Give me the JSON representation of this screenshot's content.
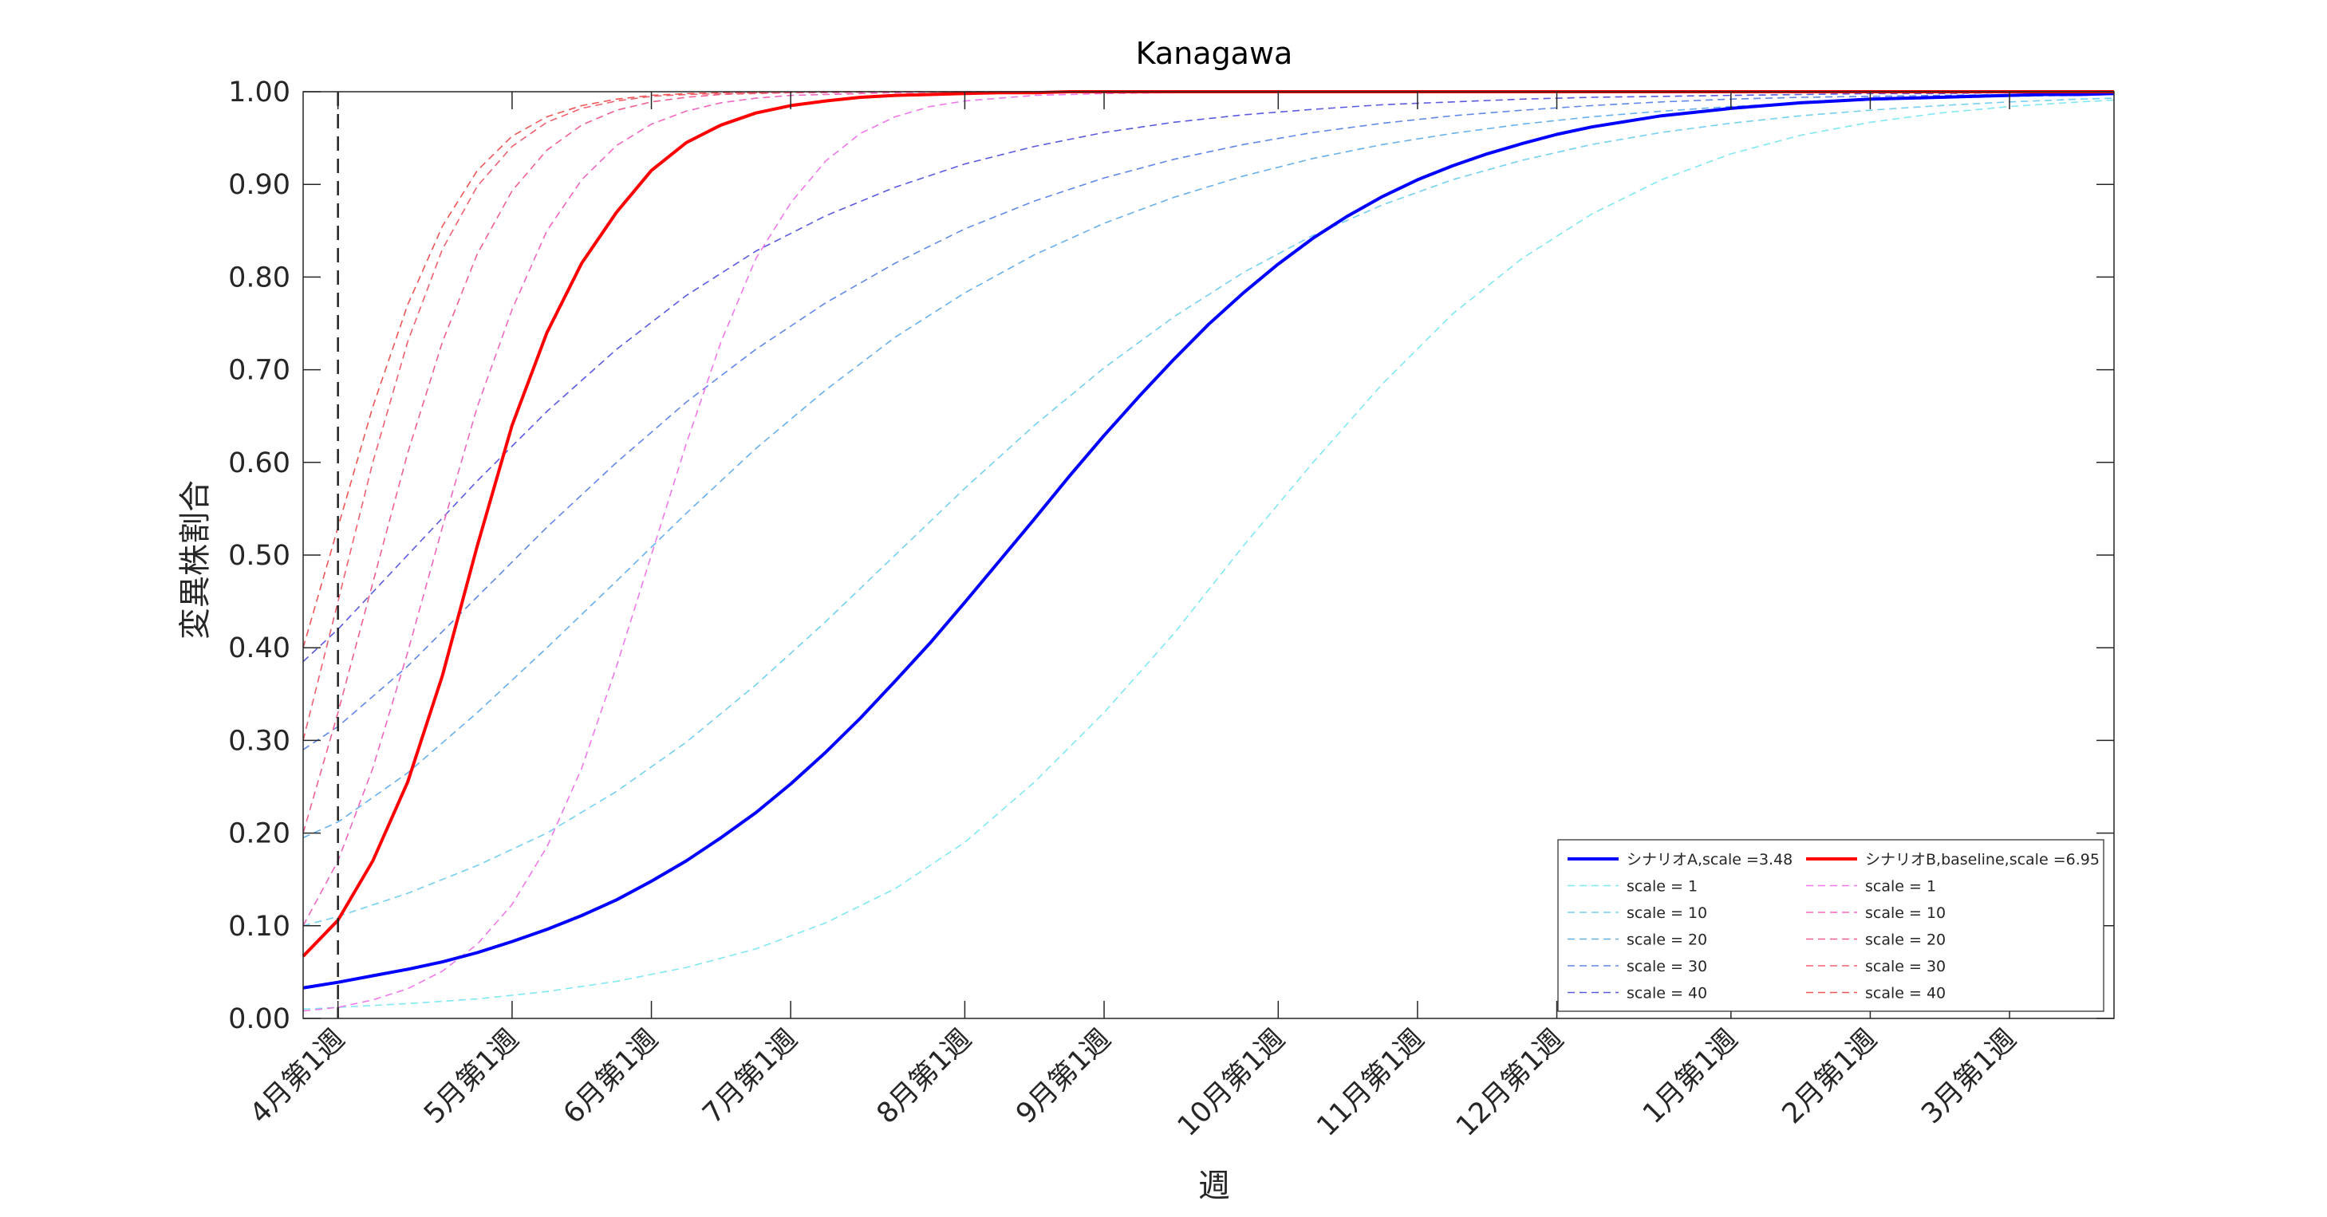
{
  "chart_data": {
    "type": "line",
    "title": "Kanagawa",
    "xlabel": "週",
    "ylabel": "変異株割合",
    "ylim": [
      0,
      1
    ],
    "yticks": [
      "0.00",
      "0.10",
      "0.20",
      "0.30",
      "0.40",
      "0.50",
      "0.60",
      "0.70",
      "0.80",
      "0.90",
      "1.00"
    ],
    "x_range_weeks": [
      -1,
      51
    ],
    "xticks": [
      {
        "week": 0,
        "label": "4月第1週"
      },
      {
        "week": 5,
        "label": "5月第1週"
      },
      {
        "week": 9,
        "label": "6月第1週"
      },
      {
        "week": 13,
        "label": "7月第1週"
      },
      {
        "week": 18,
        "label": "8月第1週"
      },
      {
        "week": 22,
        "label": "9月第1週"
      },
      {
        "week": 27,
        "label": "10月第1週"
      },
      {
        "week": 31,
        "label": "11月第1週"
      },
      {
        "week": 35,
        "label": "12月第1週"
      },
      {
        "week": 40,
        "label": "1月第1週"
      },
      {
        "week": 44,
        "label": "2月第1週"
      },
      {
        "week": 48,
        "label": "3月第1週"
      }
    ],
    "vline_week": 0,
    "grid": false,
    "legend_position": "bottom-right",
    "series": [
      {
        "name": "シナリオA,scale =3.48",
        "color": "#0000ff",
        "style": "solid",
        "width": 4,
        "x": [
          -1,
          0,
          1,
          2,
          3,
          4,
          5,
          6,
          7,
          8,
          9,
          10,
          11,
          12,
          13,
          14,
          15,
          16,
          17,
          18,
          19,
          20,
          21,
          22,
          23,
          24,
          25,
          26,
          27,
          28,
          29,
          30,
          31,
          32,
          33,
          34,
          35,
          36,
          37,
          38,
          39,
          40,
          41,
          42,
          43,
          44,
          45,
          46,
          47,
          48,
          49,
          50,
          51
        ],
        "y": [
          0.033,
          0.039,
          0.046,
          0.053,
          0.061,
          0.071,
          0.083,
          0.096,
          0.111,
          0.128,
          0.148,
          0.17,
          0.195,
          0.222,
          0.253,
          0.287,
          0.324,
          0.364,
          0.405,
          0.449,
          0.494,
          0.539,
          0.585,
          0.629,
          0.671,
          0.711,
          0.749,
          0.783,
          0.814,
          0.842,
          0.866,
          0.887,
          0.905,
          0.92,
          0.933,
          0.944,
          0.954,
          0.962,
          0.968,
          0.974,
          0.978,
          0.982,
          0.985,
          0.988,
          0.99,
          0.992,
          0.993,
          0.994,
          0.995,
          0.996,
          0.997,
          0.997,
          0.998
        ]
      },
      {
        "name": "シナリオB,baseline,scale =6.95",
        "color": "#ff0000",
        "style": "solid",
        "width": 4,
        "x": [
          -1,
          0,
          1,
          2,
          3,
          4,
          5,
          6,
          7,
          8,
          9,
          10,
          11,
          12,
          13,
          14,
          15,
          16,
          17,
          18,
          19,
          20,
          21,
          22,
          23,
          24,
          25,
          26,
          27,
          28,
          29,
          30,
          31,
          32,
          33,
          34,
          35,
          36,
          37,
          38,
          39,
          40,
          41,
          42,
          43,
          44,
          45,
          46,
          47,
          48,
          49,
          50,
          51
        ],
        "y": [
          0.067,
          0.106,
          0.17,
          0.255,
          0.37,
          0.51,
          0.64,
          0.74,
          0.815,
          0.87,
          0.915,
          0.945,
          0.964,
          0.977,
          0.985,
          0.99,
          0.994,
          0.996,
          0.997,
          0.998,
          0.999,
          0.999,
          1.0,
          1.0,
          1.0,
          1.0,
          1.0,
          1.0,
          1.0,
          1.0,
          1.0,
          1.0,
          1.0,
          1.0,
          1.0,
          1.0,
          1.0,
          1.0,
          1.0,
          1.0,
          1.0,
          1.0,
          1.0,
          1.0,
          1.0,
          1.0,
          1.0,
          1.0,
          1.0,
          1.0,
          1.0,
          1.0,
          1.0
        ]
      },
      {
        "name": "scale = 1",
        "group": "A",
        "color": "#7fe8f2",
        "style": "dashed",
        "width": 1.6,
        "x": [
          -1,
          0,
          2,
          4,
          6,
          8,
          10,
          12,
          14,
          16,
          18,
          20,
          22,
          24,
          26,
          28,
          30,
          32,
          34,
          36,
          38,
          40,
          42,
          44,
          46,
          48,
          50,
          51
        ],
        "y": [
          0.01,
          0.012,
          0.016,
          0.021,
          0.029,
          0.04,
          0.055,
          0.075,
          0.103,
          0.14,
          0.19,
          0.255,
          0.33,
          0.415,
          0.51,
          0.6,
          0.685,
          0.76,
          0.82,
          0.868,
          0.905,
          0.933,
          0.953,
          0.967,
          0.977,
          0.984,
          0.989,
          0.991
        ]
      },
      {
        "name": "scale = 10",
        "group": "A",
        "color": "#73d0f0",
        "style": "dashed",
        "width": 1.6,
        "x": [
          -1,
          0,
          2,
          4,
          6,
          8,
          10,
          12,
          14,
          16,
          18,
          20,
          22,
          24,
          26,
          28,
          30,
          32,
          34,
          36,
          38,
          40,
          42,
          44,
          46,
          48,
          50,
          51
        ],
        "y": [
          0.1,
          0.11,
          0.135,
          0.165,
          0.2,
          0.245,
          0.298,
          0.36,
          0.428,
          0.5,
          0.572,
          0.64,
          0.702,
          0.757,
          0.805,
          0.845,
          0.878,
          0.905,
          0.926,
          0.943,
          0.956,
          0.966,
          0.974,
          0.98,
          0.985,
          0.989,
          0.992,
          0.993
        ]
      },
      {
        "name": "scale = 20",
        "group": "A",
        "color": "#66b0ee",
        "style": "dashed",
        "width": 1.6,
        "x": [
          -1,
          0,
          2,
          4,
          6,
          8,
          10,
          12,
          14,
          16,
          18,
          20,
          22,
          24,
          26,
          28,
          30,
          32,
          34,
          36,
          38,
          40,
          42,
          44,
          46,
          48,
          50,
          51
        ],
        "y": [
          0.195,
          0.212,
          0.265,
          0.33,
          0.4,
          0.472,
          0.545,
          0.615,
          0.678,
          0.735,
          0.783,
          0.824,
          0.858,
          0.886,
          0.909,
          0.928,
          0.943,
          0.955,
          0.965,
          0.973,
          0.979,
          0.984,
          0.988,
          0.991,
          0.993,
          0.995,
          0.996,
          0.997
        ]
      },
      {
        "name": "scale = 30",
        "group": "A",
        "color": "#6088e8",
        "style": "dashed",
        "width": 1.6,
        "x": [
          -1,
          0,
          2,
          4,
          6,
          8,
          10,
          12,
          14,
          16,
          18,
          20,
          22,
          24,
          26,
          28,
          30,
          32,
          34,
          36,
          38,
          40,
          42,
          44,
          46,
          48,
          50,
          51
        ],
        "y": [
          0.29,
          0.315,
          0.38,
          0.455,
          0.53,
          0.6,
          0.665,
          0.722,
          0.772,
          0.815,
          0.852,
          0.882,
          0.907,
          0.927,
          0.943,
          0.956,
          0.966,
          0.974,
          0.98,
          0.985,
          0.989,
          0.992,
          0.994,
          0.995,
          0.996,
          0.997,
          0.998,
          0.998
        ]
      },
      {
        "name": "scale = 40",
        "group": "A",
        "color": "#5a5ae0",
        "style": "dashed",
        "width": 1.6,
        "x": [
          -1,
          0,
          2,
          4,
          6,
          8,
          10,
          12,
          14,
          16,
          18,
          20,
          22,
          24,
          26,
          28,
          30,
          32,
          34,
          36,
          38,
          40,
          42,
          44,
          46,
          48,
          50,
          51
        ],
        "y": [
          0.385,
          0.42,
          0.5,
          0.58,
          0.655,
          0.722,
          0.78,
          0.828,
          0.866,
          0.897,
          0.922,
          0.941,
          0.956,
          0.967,
          0.975,
          0.981,
          0.986,
          0.989,
          0.992,
          0.994,
          0.995,
          0.996,
          0.997,
          0.998,
          0.998,
          0.999,
          0.999,
          0.999
        ]
      },
      {
        "name": "scale = 1",
        "group": "B",
        "color": "#f078ec",
        "style": "dashed",
        "width": 1.6,
        "x": [
          -1,
          0,
          1,
          2,
          3,
          4,
          5,
          6,
          7,
          8,
          9,
          10,
          11,
          12,
          13,
          14,
          15,
          16,
          17,
          18,
          20,
          22,
          26,
          30,
          40,
          51
        ],
        "y": [
          0.008,
          0.012,
          0.02,
          0.032,
          0.051,
          0.08,
          0.123,
          0.185,
          0.27,
          0.38,
          0.5,
          0.62,
          0.73,
          0.82,
          0.88,
          0.925,
          0.955,
          0.973,
          0.984,
          0.99,
          0.996,
          0.998,
          1.0,
          1.0,
          1.0,
          1.0
        ]
      },
      {
        "name": "scale = 10",
        "group": "B",
        "color": "#f066c0",
        "style": "dashed",
        "width": 1.6,
        "x": [
          -1,
          0,
          1,
          2,
          3,
          4,
          5,
          6,
          7,
          8,
          9,
          10,
          11,
          12,
          13,
          14,
          15,
          16,
          18,
          20,
          24,
          30,
          40,
          51
        ],
        "y": [
          0.1,
          0.17,
          0.27,
          0.395,
          0.53,
          0.66,
          0.765,
          0.85,
          0.905,
          0.942,
          0.965,
          0.979,
          0.988,
          0.993,
          0.996,
          0.997,
          0.998,
          0.999,
          1.0,
          1.0,
          1.0,
          1.0,
          1.0,
          1.0
        ]
      },
      {
        "name": "scale = 20",
        "group": "B",
        "color": "#f06090",
        "style": "dashed",
        "width": 1.6,
        "x": [
          -1,
          0,
          1,
          2,
          3,
          4,
          5,
          6,
          7,
          8,
          9,
          10,
          11,
          12,
          13,
          14,
          16,
          18,
          22,
          30,
          40,
          51
        ],
        "y": [
          0.2,
          0.33,
          0.47,
          0.61,
          0.73,
          0.825,
          0.893,
          0.937,
          0.964,
          0.98,
          0.989,
          0.994,
          0.997,
          0.998,
          0.999,
          0.999,
          1.0,
          1.0,
          1.0,
          1.0,
          1.0,
          1.0
        ]
      },
      {
        "name": "scale = 30",
        "group": "B",
        "color": "#f06070",
        "style": "dashed",
        "width": 1.6,
        "x": [
          -1,
          0,
          1,
          2,
          3,
          4,
          5,
          6,
          7,
          8,
          9,
          10,
          11,
          12,
          14,
          16,
          20,
          30,
          40,
          51
        ],
        "y": [
          0.3,
          0.45,
          0.6,
          0.73,
          0.83,
          0.898,
          0.941,
          0.967,
          0.982,
          0.99,
          0.995,
          0.997,
          0.998,
          0.999,
          1.0,
          1.0,
          1.0,
          1.0,
          1.0,
          1.0
        ]
      },
      {
        "name": "scale = 40",
        "group": "B",
        "color": "#f05555",
        "style": "dashed",
        "width": 1.6,
        "x": [
          -1,
          0,
          1,
          2,
          3,
          4,
          5,
          6,
          7,
          8,
          9,
          10,
          11,
          12,
          14,
          16,
          20,
          30,
          40,
          51
        ],
        "y": [
          0.4,
          0.53,
          0.66,
          0.77,
          0.855,
          0.915,
          0.952,
          0.973,
          0.985,
          0.992,
          0.996,
          0.998,
          0.999,
          0.999,
          1.0,
          1.0,
          1.0,
          1.0,
          1.0,
          1.0
        ]
      }
    ]
  }
}
